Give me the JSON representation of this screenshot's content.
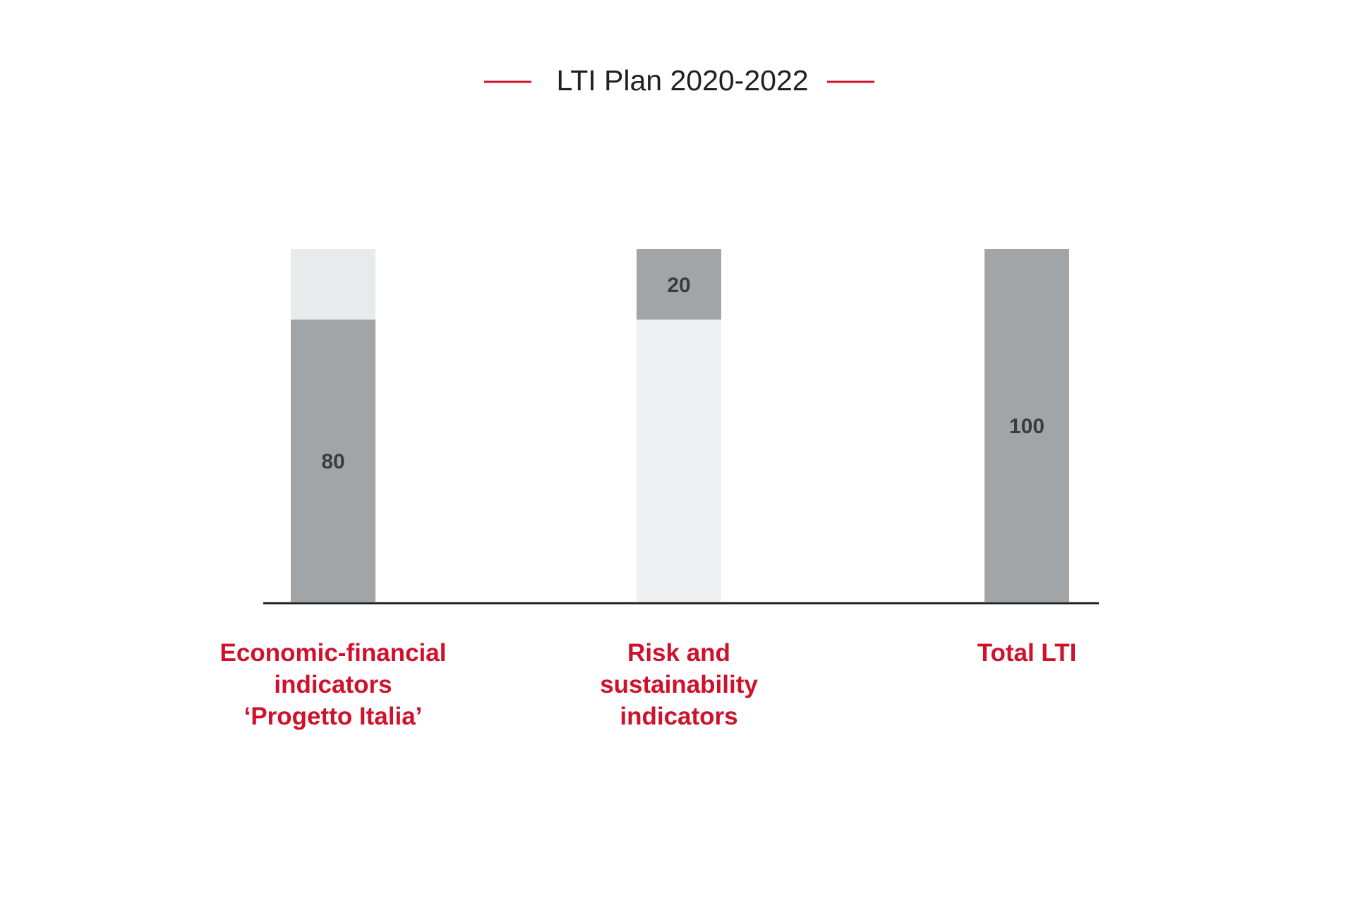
{
  "chart_data": {
    "type": "bar",
    "title": "LTI Plan 2020-2022",
    "xlabel": "",
    "ylabel": "",
    "ylim": [
      0,
      100
    ],
    "grid": false,
    "categories": [
      [
        "Economic-financial",
        "indicators",
        "‘Progetto Italia’"
      ],
      [
        "Risk and",
        "sustainability",
        "indicators"
      ],
      [
        "Total LTI"
      ]
    ],
    "bars": [
      {
        "offset": 0,
        "value": 80,
        "label": "80"
      },
      {
        "offset": 80,
        "value": 20,
        "label": "20"
      },
      {
        "offset": 0,
        "value": 100,
        "label": "100"
      }
    ],
    "colors": {
      "bar": "#a2a5a7",
      "track_first": "#e9eaec",
      "track_second": "#eff0f1",
      "axis": "#231f20",
      "category_label": "#d0112b",
      "title_rule": "#d0112b",
      "title": "#231f20",
      "value_label": "#3c3c3c"
    }
  }
}
